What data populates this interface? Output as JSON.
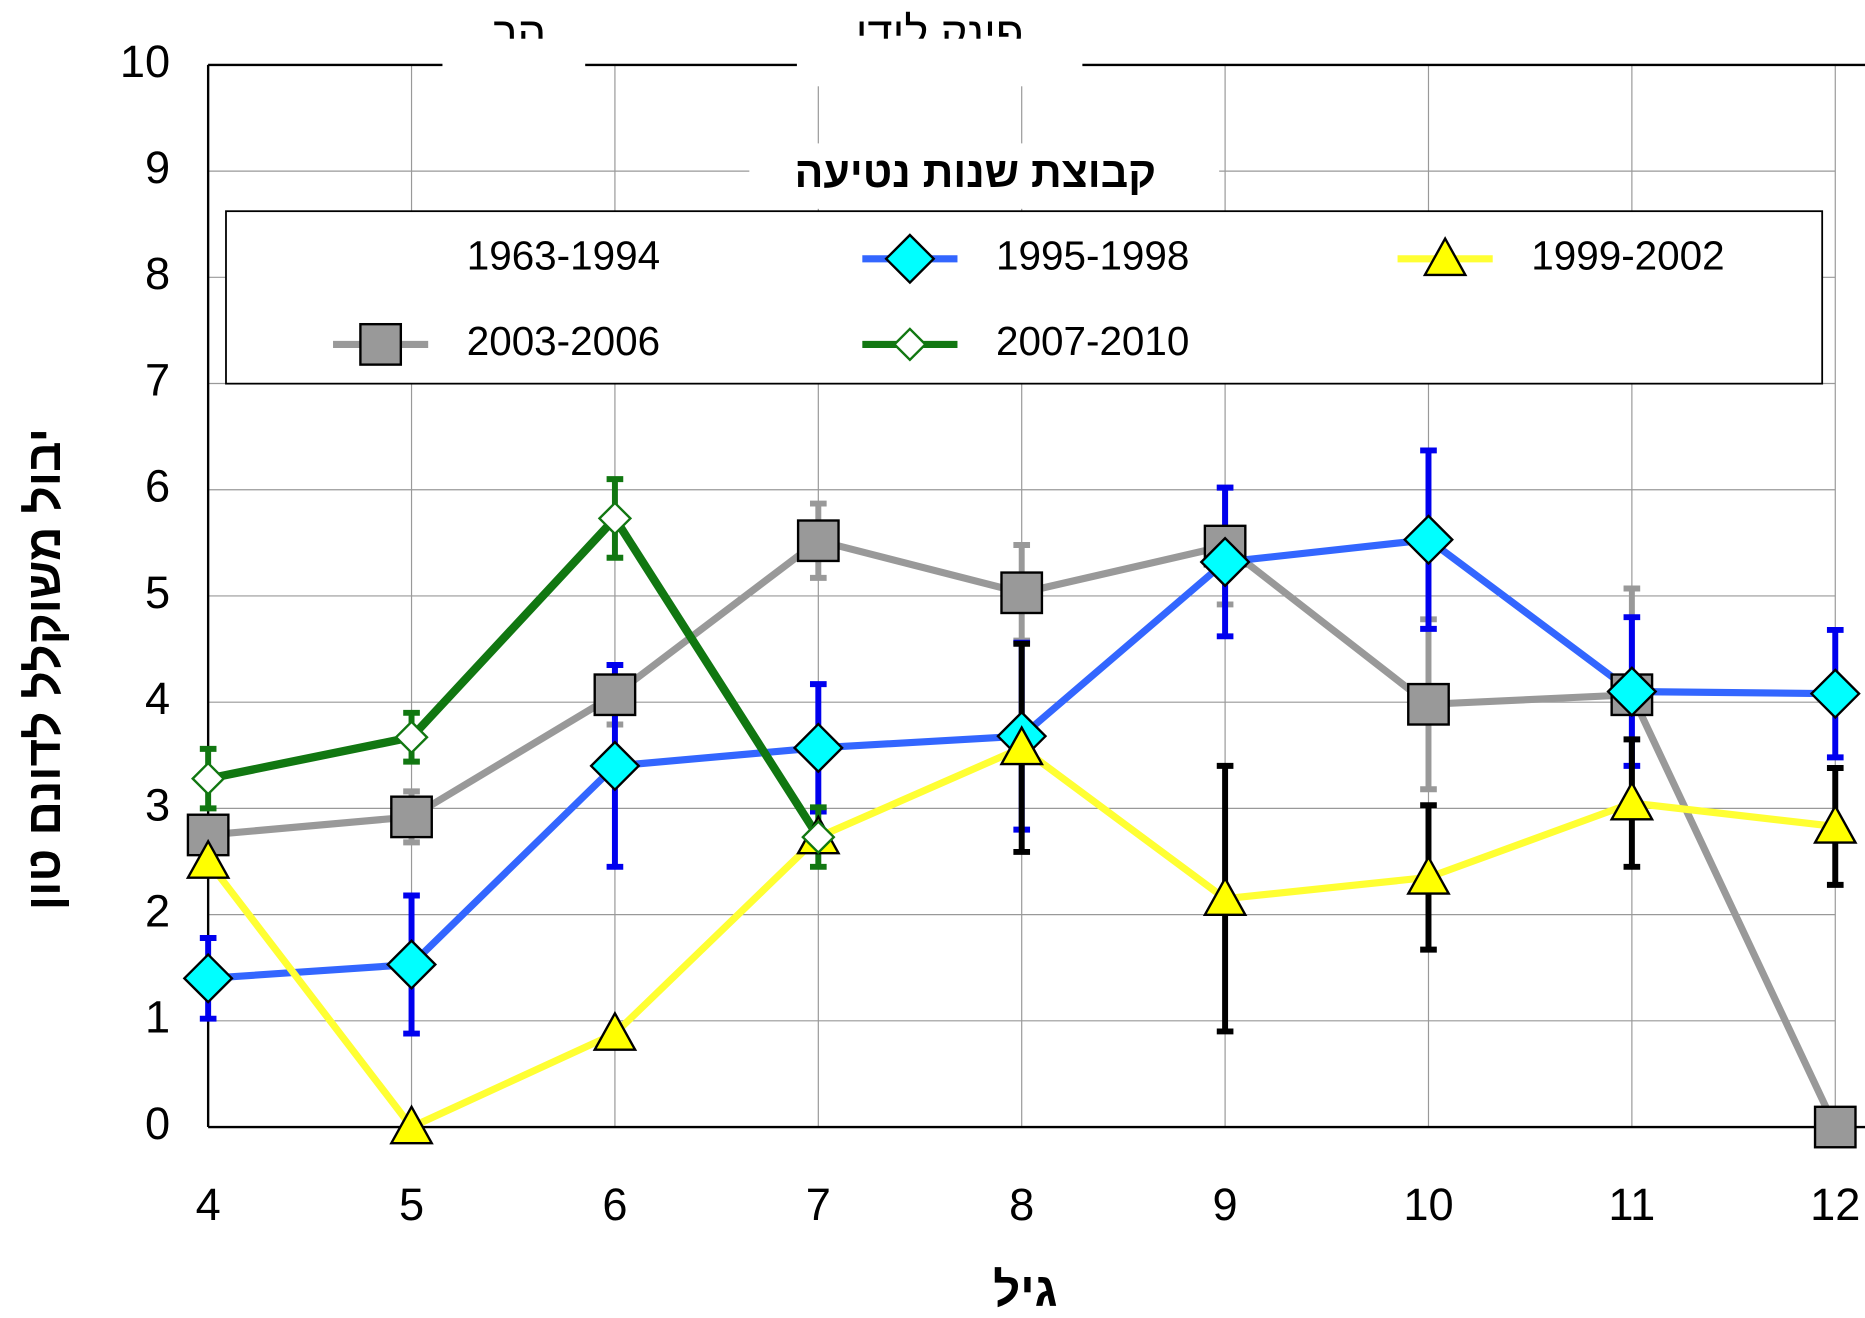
{
  "chart_data": {
    "type": "line",
    "annotations": [
      "הר",
      "פינק לידי"
    ],
    "xlabel": "גיל",
    "ylabel": "יבול משוקלל לדונם טון",
    "legend_title": "קבוצת שנות נטיעה",
    "x": [
      4,
      5,
      6,
      7,
      8,
      9,
      10,
      11,
      12
    ],
    "xlim": [
      4,
      12
    ],
    "xticks": [
      4,
      5,
      6,
      7,
      8,
      9,
      10,
      11,
      12
    ],
    "ylim": [
      0,
      10
    ],
    "yticks": [
      0,
      1,
      2,
      3,
      4,
      5,
      6,
      7,
      8,
      9,
      10
    ],
    "grid": true,
    "series": [
      {
        "name": "1963-1994",
        "values": [
          null,
          null,
          null,
          null,
          null,
          null,
          null,
          null,
          null
        ]
      },
      {
        "name": "1995-1998",
        "color": "#3366ff",
        "marker": "diamond",
        "marker_color": "#00ffff",
        "error_color": "#0000ee",
        "values": [
          1.4,
          1.53,
          3.4,
          3.57,
          3.68,
          5.32,
          5.53,
          4.1,
          4.08
        ],
        "errors": [
          0.38,
          0.65,
          0.95,
          0.6,
          0.88,
          0.7,
          0.84,
          0.7,
          0.6
        ]
      },
      {
        "name": "1999-2002",
        "color": "#ffff33",
        "marker": "triangle",
        "marker_color": "#ffff00",
        "error_color": "#000000",
        "values": [
          2.5,
          0,
          0.88,
          2.73,
          3.57,
          2.15,
          2.35,
          3.05,
          2.83
        ],
        "errors": [
          null,
          null,
          null,
          null,
          0.98,
          1.25,
          0.68,
          0.6,
          0.55
        ]
      },
      {
        "name": "2003-2006",
        "color": "#999999",
        "marker": "square",
        "marker_color": "#999999",
        "error_color": "#999999",
        "values": [
          2.75,
          2.92,
          4.07,
          5.52,
          5.03,
          5.47,
          3.98,
          4.07,
          0
        ],
        "errors": [
          null,
          0.24,
          0.28,
          0.35,
          0.45,
          0.55,
          0.8,
          1.0,
          null
        ]
      },
      {
        "name": "2007-2010",
        "color": "#117711",
        "marker": "hollow-diamond",
        "marker_color": "#ffffff",
        "error_color": "#117711",
        "values": [
          3.28,
          3.67,
          5.73,
          2.73,
          null,
          null,
          null,
          null,
          null
        ],
        "errors": [
          0.28,
          0.23,
          0.37,
          0.28,
          null,
          null,
          null,
          null,
          null
        ]
      }
    ]
  }
}
